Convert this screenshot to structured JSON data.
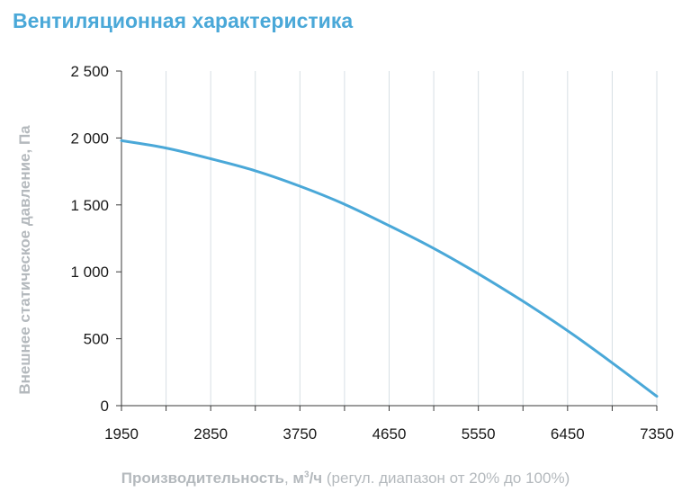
{
  "title": "Вентиляционная характеристика",
  "ylabel": "Внешнее статическое давление, Па",
  "xlabel": {
    "main": "Производительность",
    "sep": ", ",
    "unit_base": "м",
    "unit_sup": "3",
    "unit_rest": "/ч",
    "note": " (регул. диапазон от 20% до 100%)"
  },
  "colors": {
    "title": "#4aa8d8",
    "curve": "#4aa8d8",
    "grid": "#d7dfe4",
    "axis": "#3a3a3a",
    "label": "#b4b9bd"
  },
  "chart_data": {
    "type": "line",
    "xlim": [
      1950,
      7350
    ],
    "ylim": [
      0,
      2500
    ],
    "x_ticks": [
      1950,
      2850,
      3750,
      4650,
      5550,
      6450,
      7350
    ],
    "x_tick_labels": [
      "1950",
      "2850",
      "3750",
      "4650",
      "5550",
      "6450",
      "7350"
    ],
    "y_ticks": [
      0,
      500,
      1000,
      1500,
      2000,
      2500
    ],
    "y_tick_labels": [
      "0",
      "500",
      "1 000",
      "1 500",
      "2 000",
      "2 500"
    ],
    "grid": "vertical",
    "series": [
      {
        "x": [
          1950,
          2400,
          2850,
          3300,
          3750,
          4200,
          4650,
          5100,
          5550,
          6000,
          6450,
          6900,
          7350
        ],
        "y": [
          1980,
          1925,
          1845,
          1755,
          1640,
          1505,
          1345,
          1175,
          985,
          780,
          560,
          320,
          70
        ]
      }
    ]
  }
}
